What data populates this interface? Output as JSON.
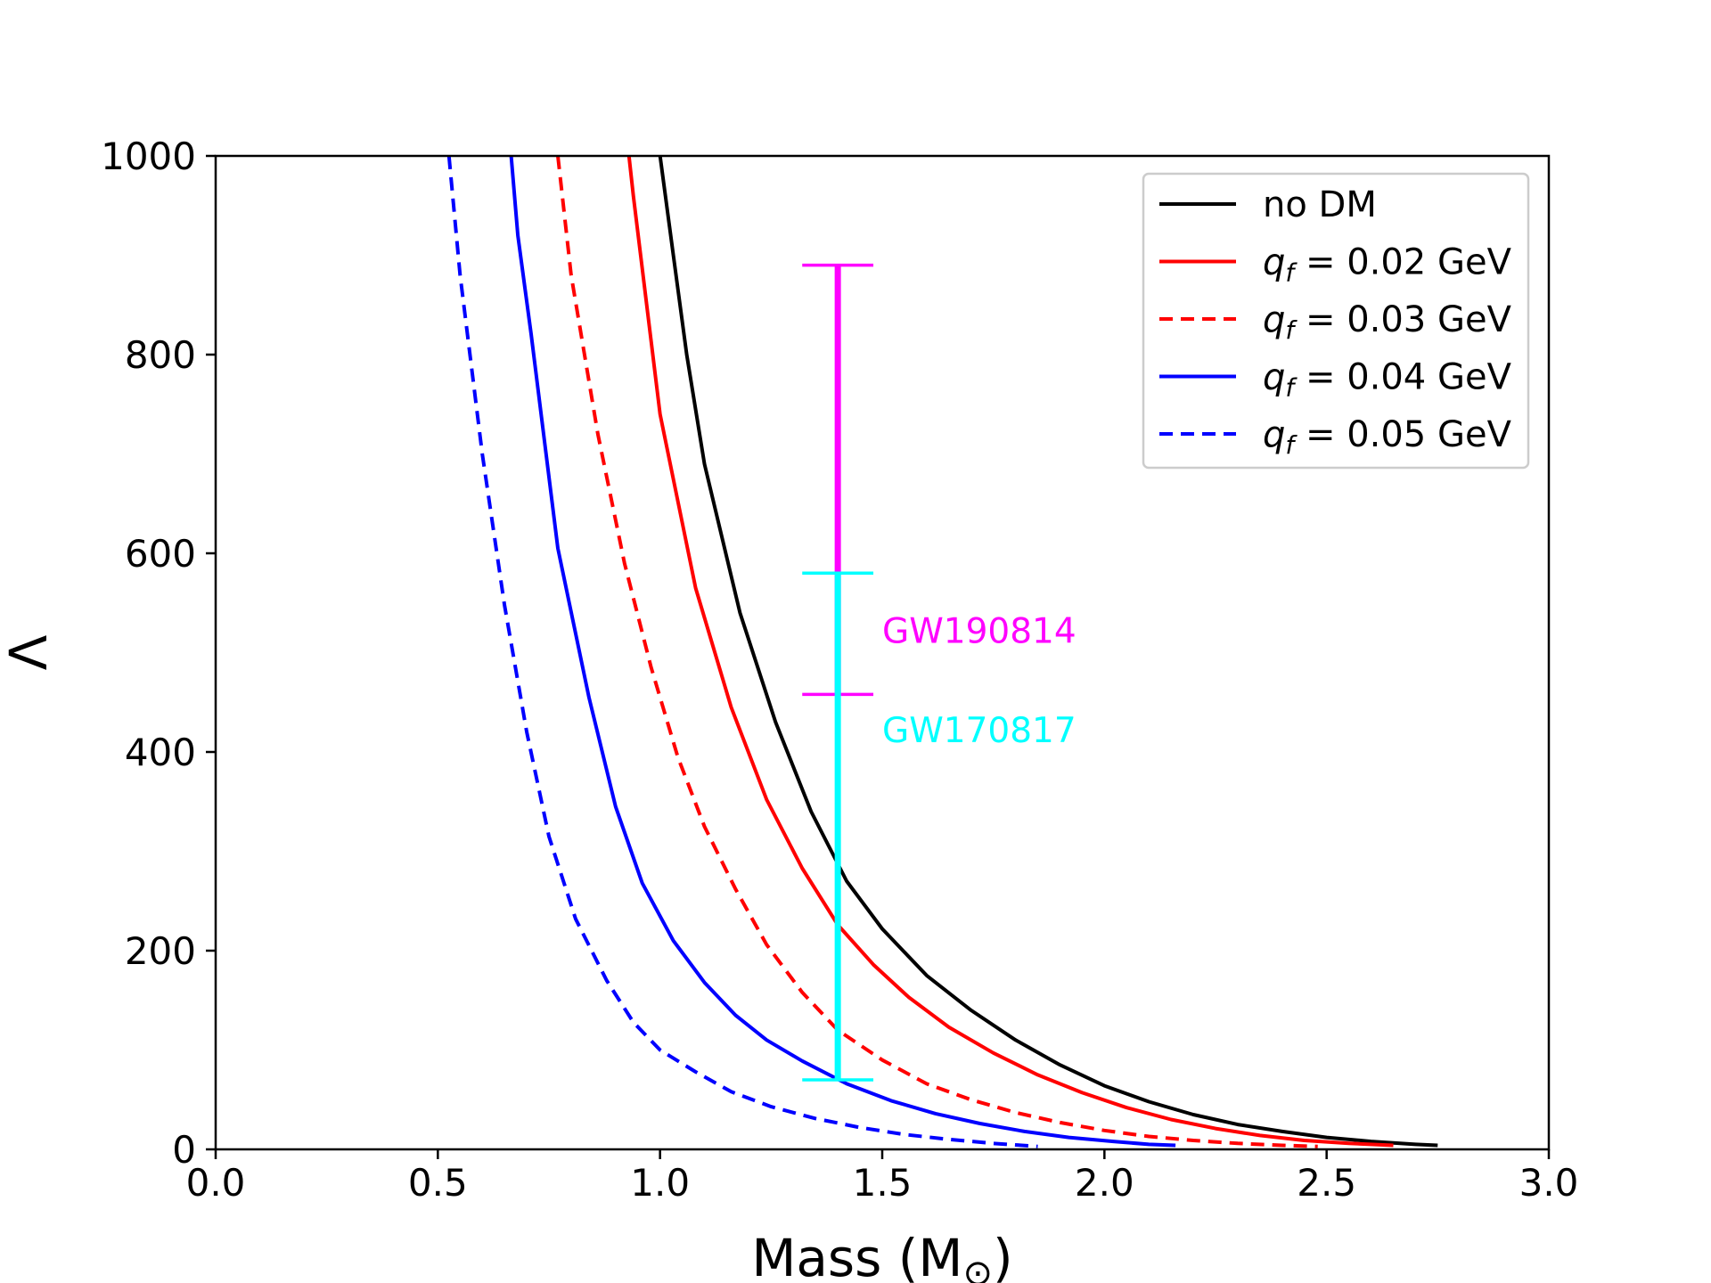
{
  "chart_data": {
    "type": "line",
    "title": "",
    "xlabel": "Mass (M",
    "xlabel_sub": "⊙",
    "xlabel_close": ")",
    "ylabel": "Λ",
    "xlim": [
      0.0,
      3.0
    ],
    "ylim": [
      0,
      1000
    ],
    "xticks": [
      "0.0",
      "0.5",
      "1.0",
      "1.5",
      "2.0",
      "2.5",
      "3.0"
    ],
    "yticks": [
      "0",
      "200",
      "400",
      "600",
      "800",
      "1000"
    ],
    "legend_position": "top-right",
    "series": [
      {
        "name": "no DM",
        "legend_label": {
          "q": "",
          "sub": "",
          "eq": "",
          "value": "no DM"
        },
        "color": "#000000",
        "dashed": false,
        "points": [
          [
            1.0,
            1000
          ],
          [
            1.03,
            900
          ],
          [
            1.06,
            800
          ],
          [
            1.1,
            690
          ],
          [
            1.18,
            540
          ],
          [
            1.26,
            430
          ],
          [
            1.34,
            340
          ],
          [
            1.42,
            270
          ],
          [
            1.5,
            222
          ],
          [
            1.6,
            175
          ],
          [
            1.7,
            140
          ],
          [
            1.8,
            110
          ],
          [
            1.9,
            85
          ],
          [
            2.0,
            64
          ],
          [
            2.1,
            48
          ],
          [
            2.2,
            35
          ],
          [
            2.3,
            25
          ],
          [
            2.4,
            18
          ],
          [
            2.5,
            12
          ],
          [
            2.6,
            8
          ],
          [
            2.7,
            5
          ],
          [
            2.75,
            4
          ]
        ]
      },
      {
        "name": "q_f = 0.02 GeV",
        "legend_label": {
          "q": "q",
          "sub": "f",
          "eq": " = ",
          "value": "0.02 GeV"
        },
        "color": "#ff0000",
        "dashed": false,
        "points": [
          [
            0.93,
            1000
          ],
          [
            0.94,
            960
          ],
          [
            1.0,
            740
          ],
          [
            1.08,
            565
          ],
          [
            1.16,
            445
          ],
          [
            1.24,
            352
          ],
          [
            1.32,
            283
          ],
          [
            1.4,
            226
          ],
          [
            1.48,
            186
          ],
          [
            1.56,
            153
          ],
          [
            1.65,
            123
          ],
          [
            1.75,
            97
          ],
          [
            1.85,
            75
          ],
          [
            1.95,
            57
          ],
          [
            2.05,
            42
          ],
          [
            2.15,
            30
          ],
          [
            2.25,
            21
          ],
          [
            2.35,
            14
          ],
          [
            2.45,
            9
          ],
          [
            2.55,
            6
          ],
          [
            2.65,
            4
          ]
        ]
      },
      {
        "name": "q_f = 0.03 GeV",
        "legend_label": {
          "q": "q",
          "sub": "f",
          "eq": " = ",
          "value": "0.03 GeV"
        },
        "color": "#ff0000",
        "dashed": true,
        "points": [
          [
            0.77,
            1000
          ],
          [
            0.8,
            880
          ],
          [
            0.86,
            720
          ],
          [
            0.92,
            590
          ],
          [
            0.98,
            485
          ],
          [
            1.04,
            395
          ],
          [
            1.1,
            325
          ],
          [
            1.17,
            262
          ],
          [
            1.24,
            206
          ],
          [
            1.32,
            158
          ],
          [
            1.4,
            120
          ],
          [
            1.5,
            90
          ],
          [
            1.6,
            66
          ],
          [
            1.7,
            50
          ],
          [
            1.8,
            37
          ],
          [
            1.9,
            27
          ],
          [
            2.0,
            19
          ],
          [
            2.1,
            13
          ],
          [
            2.2,
            9
          ],
          [
            2.3,
            6
          ],
          [
            2.4,
            4
          ],
          [
            2.48,
            3
          ]
        ]
      },
      {
        "name": "q_f = 0.04 GeV",
        "legend_label": {
          "q": "q",
          "sub": "f",
          "eq": " = ",
          "value": "0.04 GeV"
        },
        "color": "#0000ff",
        "dashed": false,
        "points": [
          [
            0.665,
            1000
          ],
          [
            0.68,
            920
          ],
          [
            0.71,
            820
          ],
          [
            0.77,
            605
          ],
          [
            0.84,
            455
          ],
          [
            0.9,
            345
          ],
          [
            0.96,
            268
          ],
          [
            1.03,
            210
          ],
          [
            1.1,
            168
          ],
          [
            1.17,
            135
          ],
          [
            1.24,
            110
          ],
          [
            1.32,
            89
          ],
          [
            1.42,
            66
          ],
          [
            1.52,
            49
          ],
          [
            1.62,
            36
          ],
          [
            1.72,
            26
          ],
          [
            1.82,
            18
          ],
          [
            1.92,
            12
          ],
          [
            2.02,
            8
          ],
          [
            2.1,
            5
          ],
          [
            2.16,
            4
          ]
        ]
      },
      {
        "name": "q_f = 0.05 GeV",
        "legend_label": {
          "q": "q",
          "sub": "f",
          "eq": " = ",
          "value": "0.05 GeV"
        },
        "color": "#0000ff",
        "dashed": true,
        "points": [
          [
            0.525,
            1000
          ],
          [
            0.55,
            880
          ],
          [
            0.6,
            700
          ],
          [
            0.65,
            548
          ],
          [
            0.7,
            420
          ],
          [
            0.75,
            315
          ],
          [
            0.81,
            232
          ],
          [
            0.88,
            170
          ],
          [
            0.94,
            128
          ],
          [
            1.0,
            100
          ],
          [
            1.08,
            78
          ],
          [
            1.16,
            58
          ],
          [
            1.25,
            43
          ],
          [
            1.35,
            31
          ],
          [
            1.45,
            22
          ],
          [
            1.55,
            15
          ],
          [
            1.65,
            10
          ],
          [
            1.75,
            6
          ],
          [
            1.85,
            3
          ]
        ]
      }
    ],
    "error_bars": [
      {
        "name": "GW190814",
        "label": "GW190814",
        "color": "#ff00ff",
        "x": 1.4,
        "y_low": 458,
        "y_high": 890,
        "cap_half_width": 0.08,
        "label_x": 1.5,
        "label_y": 510
      },
      {
        "name": "GW170817",
        "label": "GW170817",
        "color": "#00ffff",
        "x": 1.4,
        "y_low": 70,
        "y_high": 580,
        "cap_half_width": 0.08,
        "label_x": 1.5,
        "label_y": 410
      }
    ]
  }
}
